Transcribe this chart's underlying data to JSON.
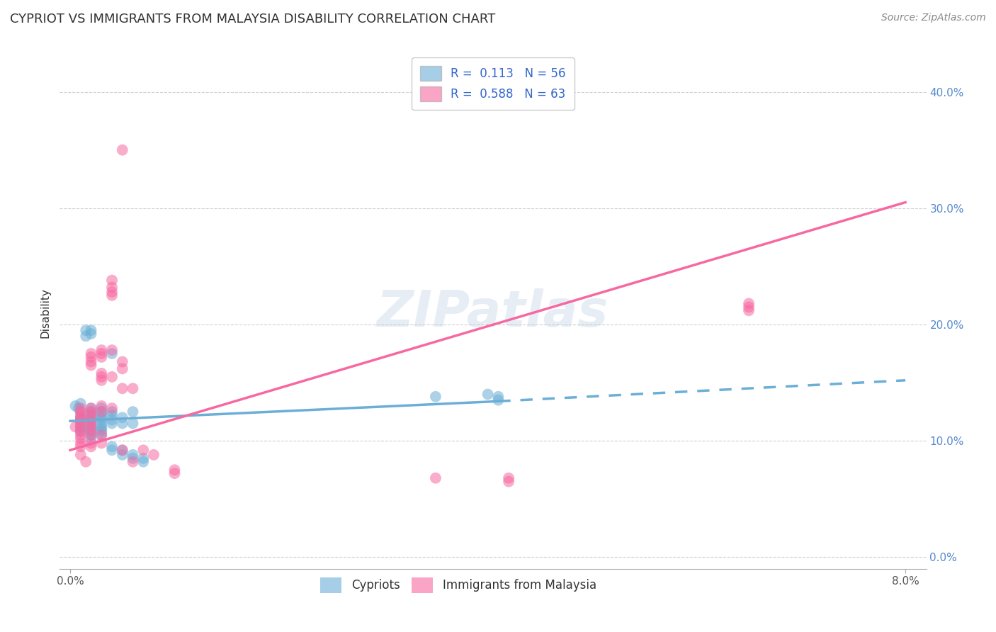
{
  "title": "CYPRIOT VS IMMIGRANTS FROM MALAYSIA DISABILITY CORRELATION CHART",
  "source": "Source: ZipAtlas.com",
  "ylabel": "Disability",
  "watermark": "ZIPatlas",
  "cypriot_color": "#6baed6",
  "malaysia_color": "#f768a1",
  "background_color": "#ffffff",
  "grid_color": "#d0d0d0",
  "xlim": [
    0.0,
    0.08
  ],
  "ylim": [
    0.0,
    0.42
  ],
  "ytick_positions": [
    0.0,
    0.1,
    0.2,
    0.3,
    0.4
  ],
  "ytick_labels": [
    "0.0%",
    "10.0%",
    "20.0%",
    "30.0%",
    "40.0%"
  ],
  "xtick_positions": [
    0.0,
    0.08
  ],
  "xtick_labels": [
    "0.0%",
    "8.0%"
  ],
  "cypriot_scatter": [
    [
      0.0005,
      0.13
    ],
    [
      0.0008,
      0.128
    ],
    [
      0.001,
      0.132
    ],
    [
      0.001,
      0.125
    ],
    [
      0.001,
      0.12
    ],
    [
      0.001,
      0.118
    ],
    [
      0.001,
      0.115
    ],
    [
      0.001,
      0.112
    ],
    [
      0.001,
      0.11
    ],
    [
      0.001,
      0.108
    ],
    [
      0.0015,
      0.195
    ],
    [
      0.0015,
      0.19
    ],
    [
      0.002,
      0.195
    ],
    [
      0.002,
      0.192
    ],
    [
      0.002,
      0.128
    ],
    [
      0.002,
      0.125
    ],
    [
      0.002,
      0.122
    ],
    [
      0.002,
      0.12
    ],
    [
      0.002,
      0.118
    ],
    [
      0.002,
      0.115
    ],
    [
      0.002,
      0.112
    ],
    [
      0.002,
      0.11
    ],
    [
      0.002,
      0.108
    ],
    [
      0.002,
      0.105
    ],
    [
      0.002,
      0.102
    ],
    [
      0.003,
      0.128
    ],
    [
      0.003,
      0.125
    ],
    [
      0.003,
      0.122
    ],
    [
      0.003,
      0.12
    ],
    [
      0.003,
      0.118
    ],
    [
      0.003,
      0.115
    ],
    [
      0.003,
      0.112
    ],
    [
      0.003,
      0.11
    ],
    [
      0.003,
      0.108
    ],
    [
      0.003,
      0.105
    ],
    [
      0.004,
      0.175
    ],
    [
      0.004,
      0.125
    ],
    [
      0.004,
      0.122
    ],
    [
      0.004,
      0.118
    ],
    [
      0.004,
      0.115
    ],
    [
      0.004,
      0.095
    ],
    [
      0.004,
      0.092
    ],
    [
      0.005,
      0.12
    ],
    [
      0.005,
      0.115
    ],
    [
      0.005,
      0.092
    ],
    [
      0.005,
      0.088
    ],
    [
      0.006,
      0.125
    ],
    [
      0.006,
      0.115
    ],
    [
      0.006,
      0.088
    ],
    [
      0.006,
      0.085
    ],
    [
      0.007,
      0.085
    ],
    [
      0.007,
      0.082
    ],
    [
      0.035,
      0.138
    ],
    [
      0.04,
      0.14
    ],
    [
      0.041,
      0.138
    ],
    [
      0.041,
      0.135
    ]
  ],
  "malaysia_scatter": [
    [
      0.0005,
      0.112
    ],
    [
      0.001,
      0.128
    ],
    [
      0.001,
      0.125
    ],
    [
      0.001,
      0.122
    ],
    [
      0.001,
      0.12
    ],
    [
      0.001,
      0.118
    ],
    [
      0.001,
      0.115
    ],
    [
      0.001,
      0.112
    ],
    [
      0.001,
      0.108
    ],
    [
      0.001,
      0.105
    ],
    [
      0.001,
      0.102
    ],
    [
      0.001,
      0.098
    ],
    [
      0.001,
      0.095
    ],
    [
      0.001,
      0.088
    ],
    [
      0.0015,
      0.082
    ],
    [
      0.002,
      0.175
    ],
    [
      0.002,
      0.172
    ],
    [
      0.002,
      0.168
    ],
    [
      0.002,
      0.165
    ],
    [
      0.002,
      0.128
    ],
    [
      0.002,
      0.125
    ],
    [
      0.002,
      0.122
    ],
    [
      0.002,
      0.118
    ],
    [
      0.002,
      0.115
    ],
    [
      0.002,
      0.112
    ],
    [
      0.002,
      0.108
    ],
    [
      0.002,
      0.105
    ],
    [
      0.002,
      0.098
    ],
    [
      0.002,
      0.095
    ],
    [
      0.003,
      0.178
    ],
    [
      0.003,
      0.175
    ],
    [
      0.003,
      0.172
    ],
    [
      0.003,
      0.158
    ],
    [
      0.003,
      0.155
    ],
    [
      0.003,
      0.152
    ],
    [
      0.003,
      0.13
    ],
    [
      0.003,
      0.125
    ],
    [
      0.003,
      0.105
    ],
    [
      0.003,
      0.098
    ],
    [
      0.004,
      0.178
    ],
    [
      0.004,
      0.238
    ],
    [
      0.004,
      0.232
    ],
    [
      0.004,
      0.228
    ],
    [
      0.004,
      0.225
    ],
    [
      0.004,
      0.155
    ],
    [
      0.004,
      0.128
    ],
    [
      0.005,
      0.35
    ],
    [
      0.005,
      0.168
    ],
    [
      0.005,
      0.162
    ],
    [
      0.005,
      0.145
    ],
    [
      0.005,
      0.092
    ],
    [
      0.006,
      0.145
    ],
    [
      0.006,
      0.082
    ],
    [
      0.007,
      0.092
    ],
    [
      0.008,
      0.088
    ],
    [
      0.01,
      0.075
    ],
    [
      0.01,
      0.072
    ],
    [
      0.035,
      0.068
    ],
    [
      0.042,
      0.065
    ],
    [
      0.065,
      0.218
    ],
    [
      0.065,
      0.215
    ],
    [
      0.065,
      0.212
    ],
    [
      0.042,
      0.068
    ]
  ],
  "cypriot_line_solid": {
    "x0": 0.0,
    "y0": 0.117,
    "x1": 0.041,
    "y1": 0.134
  },
  "cypriot_line_dash": {
    "x0": 0.041,
    "y0": 0.134,
    "x1": 0.08,
    "y1": 0.152
  },
  "malaysia_line": {
    "x0": 0.0,
    "y0": 0.092,
    "x1": 0.08,
    "y1": 0.305
  },
  "title_fontsize": 13,
  "axis_label_fontsize": 11,
  "tick_fontsize": 11,
  "legend_fontsize": 12,
  "source_fontsize": 10
}
